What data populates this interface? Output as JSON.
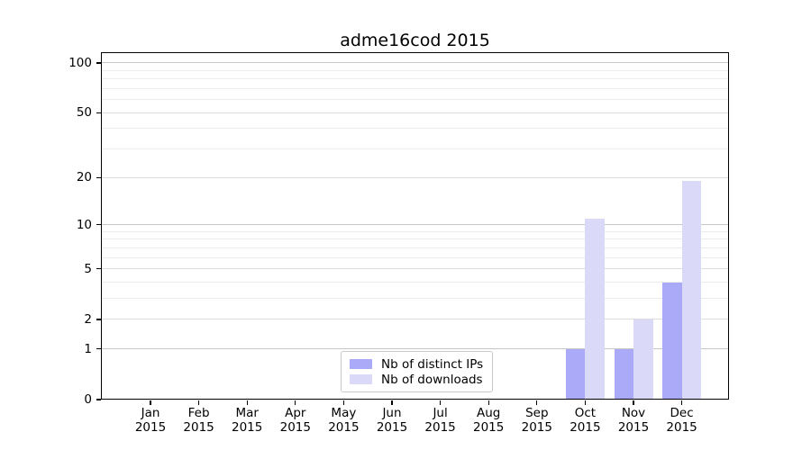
{
  "chart_data": {
    "type": "bar",
    "title": "adme16cod 2015",
    "categories": [
      "Jan",
      "Feb",
      "Mar",
      "Apr",
      "May",
      "Jun",
      "Jul",
      "Aug",
      "Sep",
      "Oct",
      "Nov",
      "Dec"
    ],
    "category_year": "2015",
    "series": [
      {
        "name": "Nb of distinct IPs",
        "color": "#aaaaf8",
        "values": [
          0,
          0,
          0,
          0,
          0,
          0,
          0,
          0,
          0,
          1,
          1,
          4
        ]
      },
      {
        "name": "Nb of downloads",
        "color": "#dadaf8",
        "values": [
          0,
          0,
          0,
          0,
          0,
          0,
          0,
          0,
          0,
          11,
          2,
          19
        ]
      }
    ],
    "yaxis": {
      "scale": "log1p",
      "ticks": [
        0,
        1,
        2,
        5,
        10,
        20,
        50,
        100
      ],
      "ylim": [
        0,
        116
      ],
      "grid_major": [
        1,
        10,
        100
      ],
      "grid_mid": [
        2,
        5,
        20,
        50
      ],
      "grid_minor": [
        3,
        4,
        6,
        7,
        8,
        9,
        30,
        40,
        60,
        70,
        80,
        90
      ]
    },
    "xlabel": "",
    "ylabel": "",
    "legend_position": "lower center",
    "colors": {
      "grid_major": "#c6c6c6",
      "grid_mid": "#dcdcdc",
      "grid_minor": "#ececec",
      "spine": "#000000",
      "background": "#ffffff"
    }
  }
}
